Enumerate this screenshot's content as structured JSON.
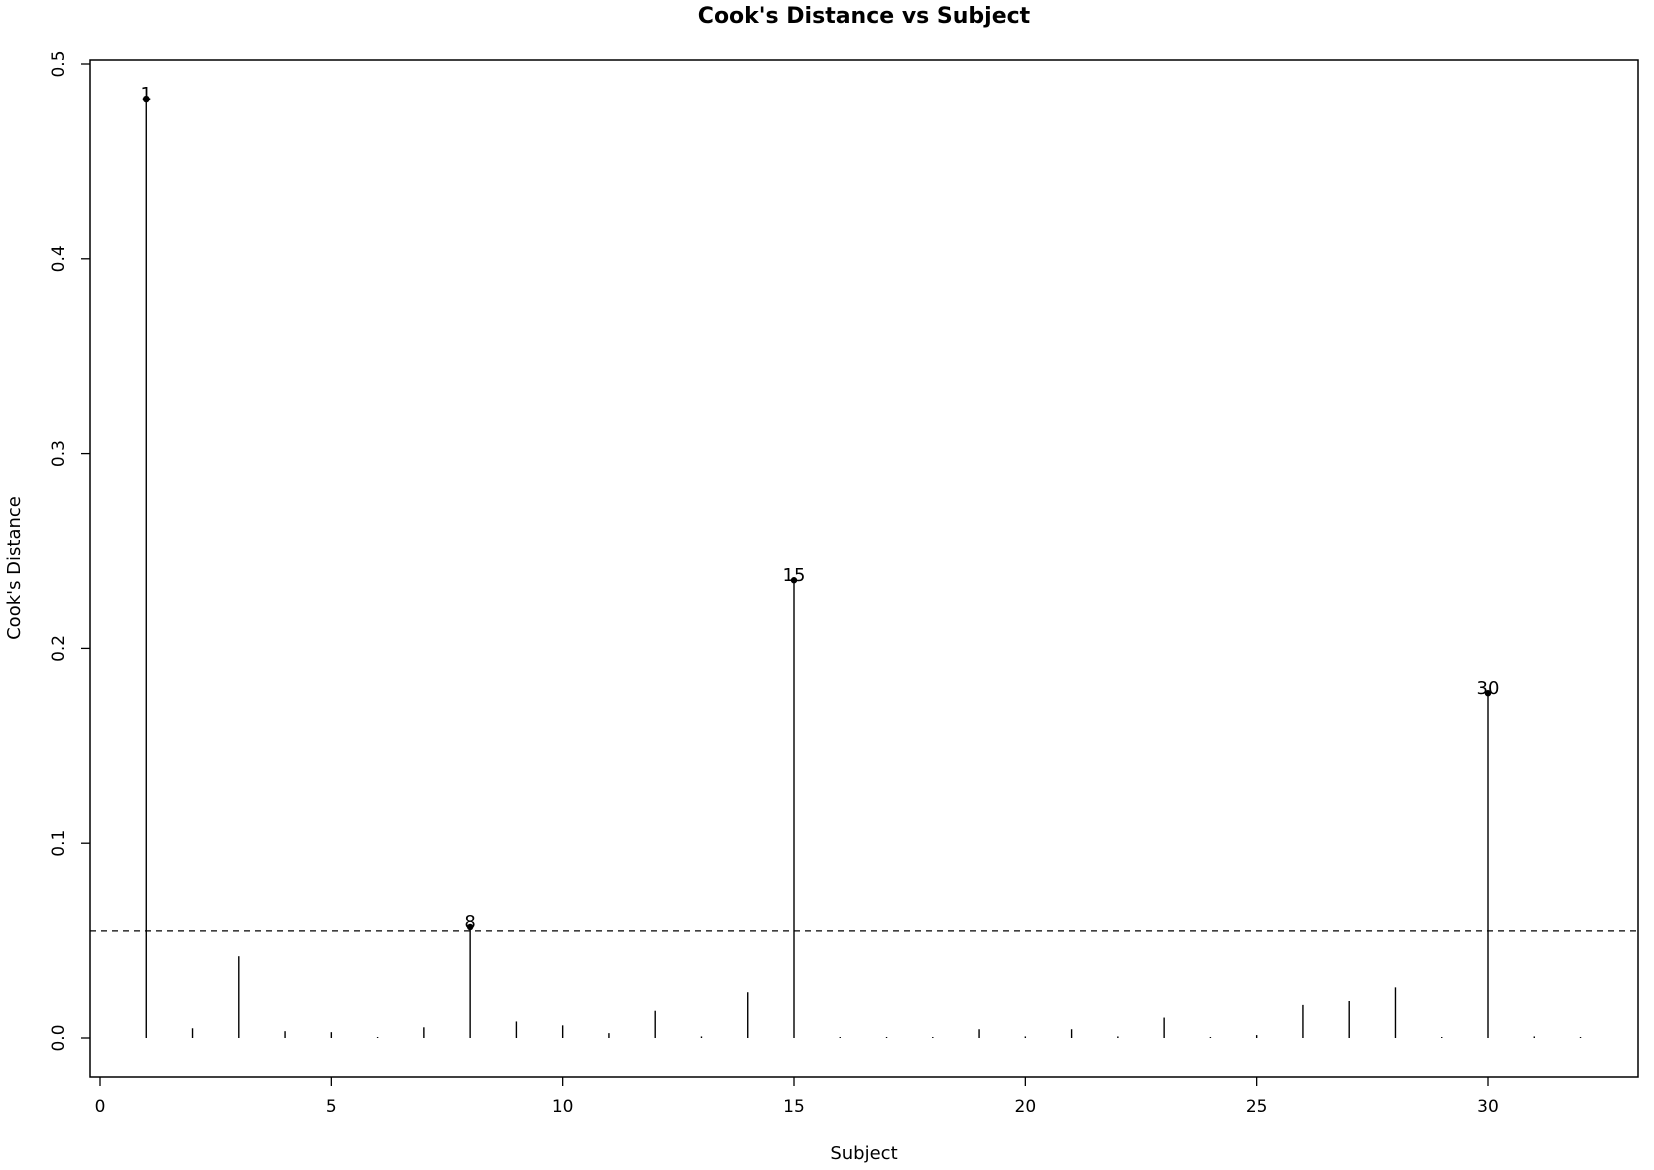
{
  "chart_data": {
    "type": "lollipop",
    "title": "Cook's Distance vs Subject",
    "xlabel": "Subject",
    "ylabel": "Cook's Distance",
    "xlim": [
      -0.35,
      33.1
    ],
    "ylim": [
      -0.019,
      0.5
    ],
    "xticks": [
      0,
      5,
      10,
      15,
      20,
      25,
      30
    ],
    "yticks": [
      0.0,
      0.1,
      0.2,
      0.3,
      0.4,
      0.5
    ],
    "ytick_labels": [
      "0.0",
      "0.1",
      "0.2",
      "0.3",
      "0.4",
      "0.5"
    ],
    "threshold": 0.055,
    "threshold_style": "dashed",
    "x": [
      1,
      2,
      3,
      4,
      5,
      6,
      7,
      8,
      9,
      10,
      11,
      12,
      13,
      14,
      15,
      16,
      17,
      18,
      19,
      20,
      21,
      22,
      23,
      24,
      25,
      26,
      27,
      28,
      29,
      30,
      31,
      32
    ],
    "values": [
      0.482,
      0.005,
      0.042,
      0.0035,
      0.003,
      0.0005,
      0.0055,
      0.057,
      0.0085,
      0.0065,
      0.0025,
      0.014,
      0.0008,
      0.0235,
      0.235,
      0.0005,
      0.0005,
      0.0005,
      0.0045,
      0.0008,
      0.0045,
      0.0008,
      0.0105,
      0.0005,
      0.0015,
      0.017,
      0.019,
      0.026,
      0.0005,
      0.177,
      0.0008,
      0.0005
    ],
    "highlighted": [
      {
        "x": 1,
        "value": 0.482,
        "label": "1"
      },
      {
        "x": 8,
        "value": 0.057,
        "label": "8"
      },
      {
        "x": 15,
        "value": 0.235,
        "label": "15"
      },
      {
        "x": 30,
        "value": 0.177,
        "label": "30"
      }
    ],
    "color": "#000000"
  }
}
